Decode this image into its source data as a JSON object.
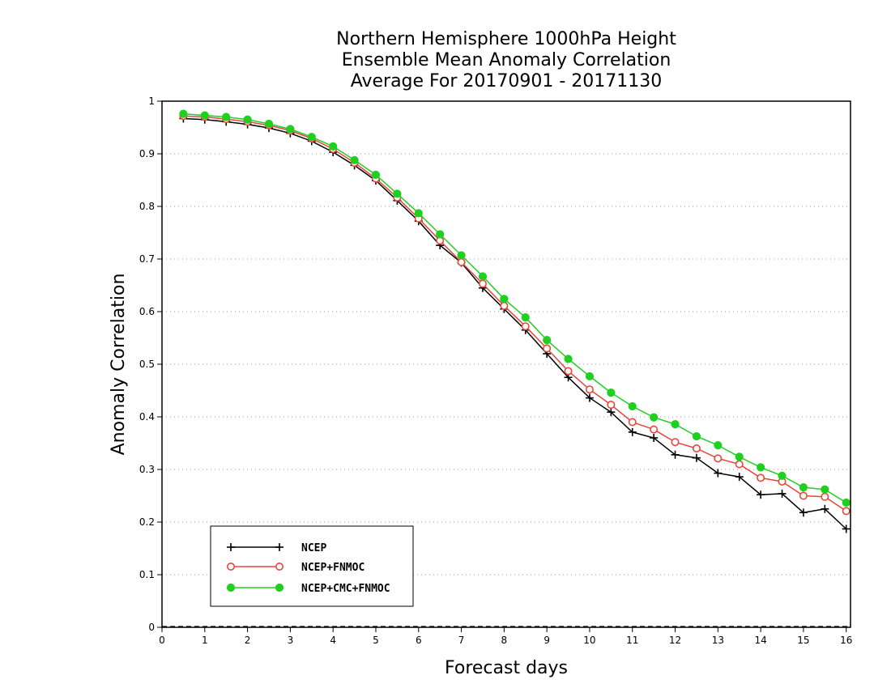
{
  "chart_data": {
    "type": "line",
    "title_lines": [
      "Northern Hemisphere 1000hPa Height",
      "Ensemble Mean Anomaly Correlation",
      "Average For 20170901 - 20171130"
    ],
    "xlabel": "Forecast days",
    "ylabel": "Anomaly Correlation",
    "xlim": [
      0,
      16.1
    ],
    "ylim": [
      0,
      1
    ],
    "x_ticks": [
      0,
      1,
      2,
      3,
      4,
      5,
      6,
      7,
      8,
      9,
      10,
      11,
      12,
      13,
      14,
      15,
      16
    ],
    "y_ticks": [
      0,
      0.1,
      0.2,
      0.3,
      0.4,
      0.5,
      0.6,
      0.7,
      0.8,
      0.9,
      1
    ],
    "y_tick_labels": [
      "0",
      "0.1",
      "0.2",
      "0.3",
      "0.4",
      "0.5",
      "0.6",
      "0.7",
      "0.8",
      "0.9",
      "1"
    ],
    "grid": "horizontal dotted",
    "legend_position": "bottom-left",
    "x": [
      0.5,
      1,
      1.5,
      2,
      2.5,
      3,
      3.5,
      4,
      4.5,
      5,
      5.5,
      6,
      6.5,
      7,
      7.5,
      8,
      8.5,
      9,
      9.5,
      10,
      10.5,
      11,
      11.5,
      12,
      12.5,
      13,
      13.5,
      14,
      14.5,
      15,
      15.5,
      16
    ],
    "series": [
      {
        "name": "NCEP",
        "color": "#000000",
        "marker": "plus",
        "values": [
          0.967,
          0.965,
          0.961,
          0.956,
          0.949,
          0.939,
          0.924,
          0.903,
          0.878,
          0.849,
          0.811,
          0.772,
          0.726,
          0.693,
          0.645,
          0.605,
          0.565,
          0.52,
          0.475,
          0.436,
          0.409,
          0.371,
          0.36,
          0.328,
          0.322,
          0.293,
          0.286,
          0.252,
          0.254,
          0.218,
          0.225,
          0.187
        ]
      },
      {
        "name": "NCEP+FNMOC",
        "color": "#e8463c",
        "marker": "open-circle",
        "values": [
          0.972,
          0.97,
          0.966,
          0.961,
          0.954,
          0.944,
          0.929,
          0.909,
          0.883,
          0.853,
          0.817,
          0.777,
          0.735,
          0.694,
          0.653,
          0.611,
          0.572,
          0.53,
          0.487,
          0.452,
          0.423,
          0.39,
          0.376,
          0.352,
          0.34,
          0.321,
          0.31,
          0.284,
          0.277,
          0.25,
          0.248,
          0.221
        ]
      },
      {
        "name": "NCEP+CMC+FNMOC",
        "color": "#20d020",
        "marker": "filled-circle",
        "values": [
          0.976,
          0.973,
          0.97,
          0.965,
          0.957,
          0.947,
          0.932,
          0.914,
          0.888,
          0.86,
          0.824,
          0.787,
          0.747,
          0.707,
          0.667,
          0.624,
          0.589,
          0.546,
          0.51,
          0.477,
          0.446,
          0.42,
          0.399,
          0.386,
          0.363,
          0.346,
          0.324,
          0.304,
          0.288,
          0.266,
          0.262,
          0.237
        ]
      }
    ]
  }
}
